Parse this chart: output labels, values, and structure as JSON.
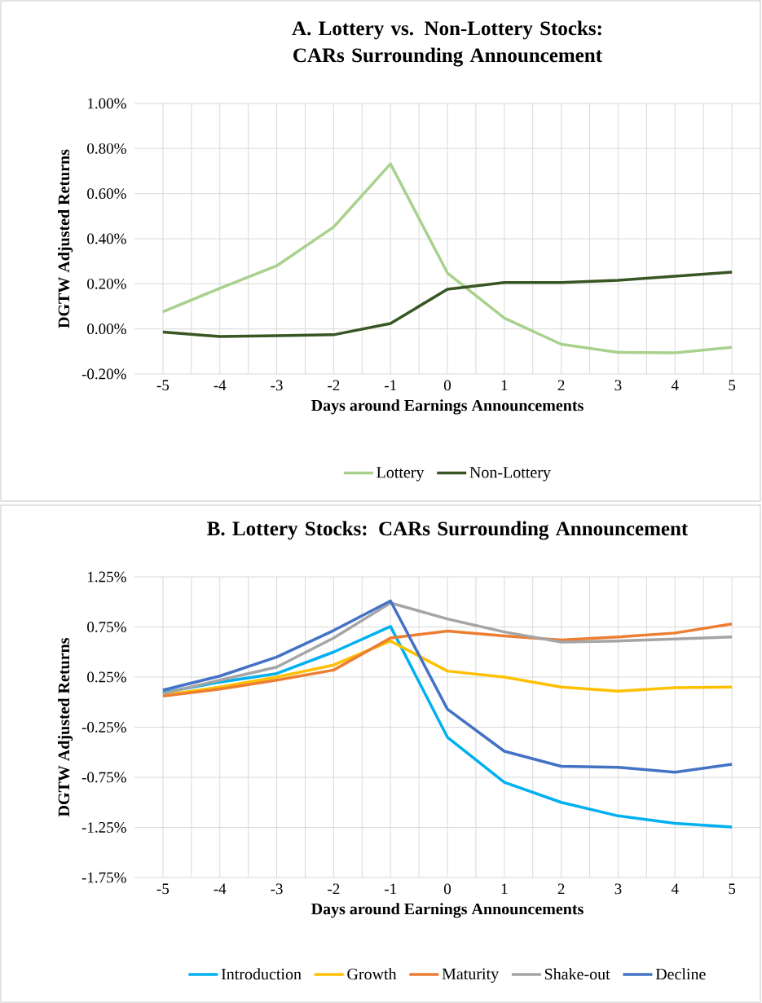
{
  "chart_data": [
    {
      "type": "line",
      "title": "A. Lottery vs. Non-Lottery Stocks: CARs Surrounding Announcement",
      "xlabel": "Days around Earnings Announcements",
      "ylabel": "DGTW Adjusted Returns",
      "categories": [
        "-5",
        "-4",
        "-3",
        "-2",
        "-1",
        "0",
        "1",
        "2",
        "3",
        "4",
        "5"
      ],
      "series": [
        {
          "name": "Lottery",
          "color": "#a9d18e",
          "values": [
            0.076,
            0.18,
            0.28,
            0.452,
            0.732,
            0.248,
            0.048,
            -0.068,
            -0.104,
            -0.106,
            -0.082
          ]
        },
        {
          "name": "Non-Lottery",
          "color": "#375623",
          "values": [
            -0.014,
            -0.034,
            -0.03,
            -0.026,
            0.024,
            0.176,
            0.206,
            0.206,
            0.216,
            0.234,
            0.252
          ]
        }
      ],
      "ylim": [
        -0.2,
        1.0
      ],
      "yticks": [
        {
          "value": -0.2,
          "label": "-0.20%"
        },
        {
          "value": 0.0,
          "label": "0.00%"
        },
        {
          "value": 0.2,
          "label": "0.20%"
        },
        {
          "value": 0.4,
          "label": "0.40%"
        },
        {
          "value": 0.6,
          "label": "0.60%"
        },
        {
          "value": 0.8,
          "label": "0.80%"
        },
        {
          "value": 1.0,
          "label": "1.00%"
        }
      ],
      "grid": true,
      "legend": "bottom"
    },
    {
      "type": "line",
      "title": "B. Lottery Stocks: CARs Surrounding Announcement",
      "xlabel": "Days around Earnings Announcements",
      "ylabel": "DGTW Adjusted Returns",
      "categories": [
        "-5",
        "-4",
        "-3",
        "-2",
        "-1",
        "0",
        "1",
        "2",
        "3",
        "4",
        "5"
      ],
      "series": [
        {
          "name": "Introduction",
          "color": "#00b0f0",
          "values": [
            0.095,
            0.2,
            0.285,
            0.5,
            0.755,
            -0.35,
            -0.8,
            -1.0,
            -1.135,
            -1.21,
            -1.245
          ]
        },
        {
          "name": "Growth",
          "color": "#ffc000",
          "values": [
            0.07,
            0.15,
            0.25,
            0.37,
            0.61,
            0.31,
            0.25,
            0.15,
            0.11,
            0.145,
            0.15
          ]
        },
        {
          "name": "Maturity",
          "color": "#ed7d31",
          "values": [
            0.06,
            0.13,
            0.22,
            0.32,
            0.64,
            0.71,
            0.66,
            0.62,
            0.65,
            0.69,
            0.78
          ]
        },
        {
          "name": "Shake-out",
          "color": "#a5a5a5",
          "values": [
            0.085,
            0.22,
            0.35,
            0.64,
            0.99,
            0.83,
            0.7,
            0.6,
            0.61,
            0.63,
            0.65
          ]
        },
        {
          "name": "Decline",
          "color": "#4472c4",
          "values": [
            0.12,
            0.26,
            0.45,
            0.715,
            1.01,
            -0.07,
            -0.49,
            -0.64,
            -0.65,
            -0.7,
            -0.62
          ]
        }
      ],
      "ylim": [
        -1.75,
        1.25
      ],
      "yticks": [
        {
          "value": -1.75,
          "label": "-1.75%"
        },
        {
          "value": -1.25,
          "label": "-1.25%"
        },
        {
          "value": -0.75,
          "label": "-0.75%"
        },
        {
          "value": -0.25,
          "label": "-0.25%"
        },
        {
          "value": 0.25,
          "label": "0.25%"
        },
        {
          "value": 0.75,
          "label": "0.75%"
        },
        {
          "value": 1.25,
          "label": "1.25%"
        }
      ],
      "grid": true,
      "legend": "bottom"
    }
  ]
}
